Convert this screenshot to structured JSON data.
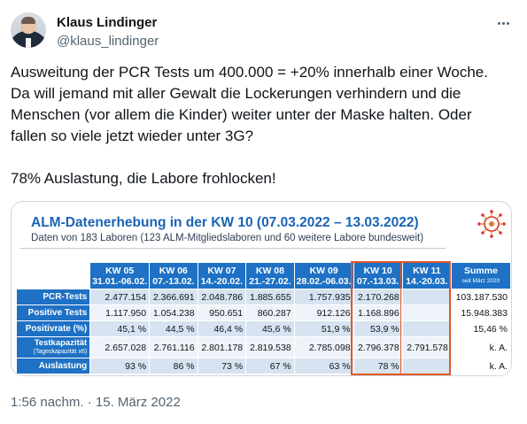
{
  "author": {
    "name": "Klaus Lindinger",
    "handle": "@klaus_lindinger"
  },
  "tweet_lines": [
    "Ausweitung der PCR Tests um 400.000 = +20% innerhalb einer Woche.",
    "Da will jemand mit aller Gewalt die Lockerungen verhindern und die",
    "Menschen (vor allem die Kinder) weiter unter der Maske halten. Oder",
    "fallen so viele jetzt wieder unter 3G?",
    "",
    "78% Auslastung, die Labore frohlocken!"
  ],
  "media": {
    "title": "ALM-Datenerhebung in der KW 10 (07.03.2022 – 13.03.2022)",
    "subtitle": "Daten von 183 Laboren (123 ALM-Mitgliedslaboren und 60 weitere Labore bundesweit)",
    "table": {
      "columns": [
        {
          "kw": "KW 05",
          "range": "31.01.-06.02."
        },
        {
          "kw": "KW 06",
          "range": "07.-13.02."
        },
        {
          "kw": "KW 07",
          "range": "14.-20.02."
        },
        {
          "kw": "KW 08",
          "range": "21.-27.02."
        },
        {
          "kw": "KW 09",
          "range": "28.02.-06.03."
        },
        {
          "kw": "KW 10",
          "range": "07.-13.03."
        },
        {
          "kw": "KW 11",
          "range": "14.-20.03."
        }
      ],
      "sum_header": "Summe",
      "sum_sub": "seit März 2020",
      "rows": [
        {
          "label": "PCR-Tests",
          "values": [
            "2.477.154",
            "2.366.691",
            "2.048.786",
            "1.885.655",
            "1.757.935",
            "2.170.268",
            ""
          ],
          "sum": "103.187.530"
        },
        {
          "label": "Positive Tests",
          "values": [
            "1.117.950",
            "1.054.238",
            "950.651",
            "860.287",
            "912.126",
            "1.168.896",
            ""
          ],
          "sum": "15.948.383"
        },
        {
          "label": "Positivrate (%)",
          "values": [
            "45,1 %",
            "44,5 %",
            "46,4 %",
            "45,6 %",
            "51,9 %",
            "53,9 %",
            ""
          ],
          "sum": "15,46 %"
        },
        {
          "label": "Testkapazität",
          "label_sub": "(Tageskapazität x6)",
          "values": [
            "2.657.028",
            "2.761.116",
            "2.801.178",
            "2.819.538",
            "2.785.098",
            "2.796.378",
            "2.791.578"
          ],
          "sum": "k. A."
        },
        {
          "label": "Auslastung",
          "values": [
            "93 %",
            "86 %",
            "73 %",
            "67 %",
            "63 %",
            "78 %",
            ""
          ],
          "sum": "k. A."
        }
      ]
    }
  },
  "timestamp": {
    "time": "1:56 nachm.",
    "separator": " · ",
    "date": "15. März 2022"
  },
  "colors": {
    "header_blue": "#1e71c4",
    "title_blue": "#1a64b5",
    "highlight_orange": "#e0572b"
  }
}
